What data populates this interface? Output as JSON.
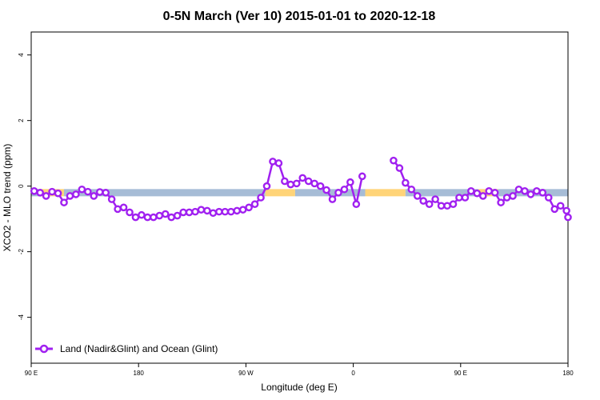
{
  "chart_data": {
    "type": "line",
    "title": "0-5N March (Ver 10)   2015-01-01 to 2020-12-18",
    "xlabel": "Longitude (deg E)",
    "ylabel": "XCO2 - MLO trend (ppm)",
    "xlim": [
      90,
      450
    ],
    "ylim": [
      -5.4,
      4.7
    ],
    "grid": false,
    "legend_position": "bottom-left",
    "x_ticks": [
      {
        "value": 90,
        "label": "90 E"
      },
      {
        "value": 162,
        "label": "180"
      },
      {
        "value": 234,
        "label": "90 W"
      },
      {
        "value": 306,
        "label": "0"
      },
      {
        "value": 378,
        "label": "90 E"
      },
      {
        "value": 450,
        "label": "180"
      }
    ],
    "y_ticks": [
      {
        "value": -4,
        "label": "-4"
      },
      {
        "value": -2,
        "label": "-2"
      },
      {
        "value": 0,
        "label": "0"
      },
      {
        "value": 2,
        "label": "2"
      },
      {
        "value": 4,
        "label": "4"
      }
    ],
    "colors": {
      "series": "#a020f0",
      "land": "#ffd478",
      "ocean": "#a6bcd6"
    },
    "surface_band": {
      "y_center": -0.2,
      "y_half_height": 0.11,
      "segments": [
        {
          "type": "ocean",
          "x0": 90,
          "x1": 96
        },
        {
          "type": "land",
          "x0": 96,
          "x1": 112
        },
        {
          "type": "ocean",
          "x0": 112,
          "x1": 247
        },
        {
          "type": "land",
          "x0": 247,
          "x1": 267
        },
        {
          "type": "ocean",
          "x0": 267,
          "x1": 314
        },
        {
          "type": "land",
          "x0": 314,
          "x1": 341
        },
        {
          "type": "ocean",
          "x0": 341,
          "x1": 390
        },
        {
          "type": "land",
          "x0": 390,
          "x1": 403
        },
        {
          "type": "ocean",
          "x0": 403,
          "x1": 450
        }
      ]
    },
    "series": [
      {
        "name": "Land (Nadir&Glint) and Ocean (Glint)",
        "segments": [
          [
            [
              92,
              -0.15
            ],
            [
              96,
              -0.2
            ],
            [
              100,
              -0.3
            ],
            [
              104,
              -0.17
            ],
            [
              108,
              -0.22
            ],
            [
              112,
              -0.5
            ],
            [
              116,
              -0.3
            ],
            [
              120,
              -0.25
            ],
            [
              124,
              -0.1
            ],
            [
              128,
              -0.17
            ],
            [
              132,
              -0.3
            ],
            [
              136,
              -0.18
            ],
            [
              140,
              -0.2
            ],
            [
              144,
              -0.4
            ],
            [
              148,
              -0.7
            ],
            [
              152,
              -0.65
            ],
            [
              156,
              -0.8
            ],
            [
              160,
              -0.95
            ],
            [
              164,
              -0.88
            ],
            [
              168,
              -0.95
            ],
            [
              172,
              -0.95
            ],
            [
              176,
              -0.9
            ],
            [
              180,
              -0.85
            ],
            [
              184,
              -0.95
            ],
            [
              188,
              -0.9
            ],
            [
              192,
              -0.8
            ],
            [
              196,
              -0.8
            ],
            [
              200,
              -0.78
            ],
            [
              204,
              -0.72
            ],
            [
              208,
              -0.75
            ],
            [
              212,
              -0.82
            ],
            [
              216,
              -0.78
            ],
            [
              220,
              -0.78
            ],
            [
              224,
              -0.78
            ],
            [
              228,
              -0.75
            ],
            [
              232,
              -0.72
            ],
            [
              236,
              -0.65
            ],
            [
              240,
              -0.55
            ],
            [
              244,
              -0.35
            ],
            [
              248,
              0.0
            ],
            [
              252,
              0.75
            ],
            [
              256,
              0.7
            ],
            [
              260,
              0.15
            ],
            [
              264,
              0.05
            ],
            [
              268,
              0.08
            ],
            [
              272,
              0.25
            ],
            [
              276,
              0.15
            ],
            [
              280,
              0.08
            ],
            [
              284,
              0.0
            ],
            [
              288,
              -0.12
            ],
            [
              292,
              -0.4
            ],
            [
              296,
              -0.2
            ],
            [
              300,
              -0.1
            ],
            [
              304,
              0.12
            ],
            [
              308,
              -0.55
            ],
            [
              312,
              0.3
            ]
          ],
          [
            [
              333,
              0.78
            ],
            [
              337,
              0.55
            ],
            [
              341,
              0.1
            ],
            [
              345,
              -0.1
            ],
            [
              349,
              -0.3
            ],
            [
              353,
              -0.45
            ],
            [
              357,
              -0.55
            ],
            [
              361,
              -0.4
            ],
            [
              365,
              -0.6
            ],
            [
              369,
              -0.6
            ],
            [
              373,
              -0.55
            ],
            [
              377,
              -0.35
            ],
            [
              381,
              -0.35
            ],
            [
              385,
              -0.15
            ],
            [
              389,
              -0.22
            ],
            [
              393,
              -0.3
            ],
            [
              397,
              -0.15
            ],
            [
              401,
              -0.2
            ],
            [
              405,
              -0.5
            ],
            [
              409,
              -0.35
            ],
            [
              413,
              -0.3
            ],
            [
              417,
              -0.1
            ],
            [
              421,
              -0.15
            ],
            [
              425,
              -0.25
            ],
            [
              429,
              -0.15
            ],
            [
              433,
              -0.2
            ],
            [
              437,
              -0.35
            ],
            [
              441,
              -0.7
            ],
            [
              445,
              -0.6
            ],
            [
              449,
              -0.75
            ],
            [
              453,
              -0.95
            ]
          ]
        ]
      }
    ]
  }
}
